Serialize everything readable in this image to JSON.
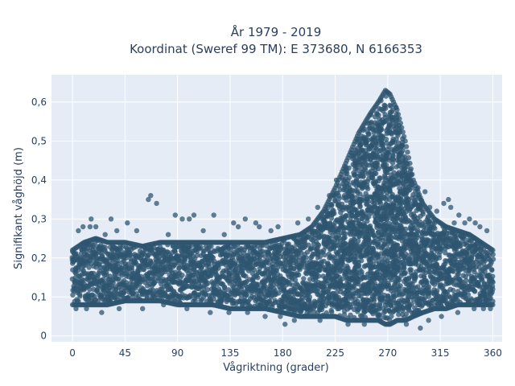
{
  "chart_data": {
    "type": "scatter",
    "title_lines": [
      "År 1979 - 2019",
      "Koordinat (Sweref 99 TM): E 373680, N 6166353"
    ],
    "xlabel": "Vågriktning (grader)",
    "ylabel": "Signifikant våghöjd (m)",
    "xlim": [
      -18,
      368
    ],
    "ylim": [
      -0.015,
      0.67
    ],
    "xticks": [
      0,
      45,
      90,
      135,
      180,
      225,
      270,
      315,
      360
    ],
    "yticks": [
      0,
      0.1,
      0.2,
      0.3,
      0.4,
      0.5,
      0.6
    ],
    "ytick_labels": [
      "0",
      "0,1",
      "0,2",
      "0,3",
      "0,4",
      "0,5",
      "0,6"
    ],
    "grid": true,
    "legend": "none",
    "colors": {
      "plot_background": "#e5ecf6",
      "grid": "#ffffff",
      "marker": "#2f5670"
    },
    "marker_opacity": 0.75,
    "envelope": {
      "direction_deg": [
        0,
        10,
        20,
        30,
        45,
        60,
        75,
        90,
        105,
        120,
        135,
        150,
        165,
        180,
        195,
        205,
        215,
        225,
        235,
        245,
        255,
        262,
        268,
        272,
        278,
        285,
        292,
        300,
        310,
        320,
        330,
        340,
        350,
        360
      ],
      "lower_m": [
        0.08,
        0.08,
        0.08,
        0.08,
        0.09,
        0.09,
        0.09,
        0.08,
        0.08,
        0.08,
        0.07,
        0.07,
        0.07,
        0.06,
        0.05,
        0.05,
        0.05,
        0.05,
        0.04,
        0.04,
        0.04,
        0.04,
        0.03,
        0.03,
        0.04,
        0.04,
        0.05,
        0.06,
        0.07,
        0.07,
        0.08,
        0.08,
        0.08,
        0.08
      ],
      "upper_m": [
        0.22,
        0.24,
        0.25,
        0.24,
        0.24,
        0.23,
        0.24,
        0.24,
        0.24,
        0.24,
        0.24,
        0.24,
        0.24,
        0.25,
        0.26,
        0.28,
        0.32,
        0.38,
        0.45,
        0.52,
        0.57,
        0.6,
        0.63,
        0.62,
        0.58,
        0.5,
        0.4,
        0.34,
        0.3,
        0.28,
        0.27,
        0.26,
        0.24,
        0.22
      ]
    },
    "outliers": [
      {
        "x": 5,
        "y": 0.27
      },
      {
        "x": 9,
        "y": 0.28
      },
      {
        "x": 15,
        "y": 0.28
      },
      {
        "x": 20,
        "y": 0.28
      },
      {
        "x": 16,
        "y": 0.3
      },
      {
        "x": 28,
        "y": 0.26
      },
      {
        "x": 33,
        "y": 0.3
      },
      {
        "x": 38,
        "y": 0.27
      },
      {
        "x": 47,
        "y": 0.29
      },
      {
        "x": 55,
        "y": 0.27
      },
      {
        "x": 65,
        "y": 0.35
      },
      {
        "x": 67,
        "y": 0.36
      },
      {
        "x": 72,
        "y": 0.34
      },
      {
        "x": 82,
        "y": 0.26
      },
      {
        "x": 88,
        "y": 0.31
      },
      {
        "x": 94,
        "y": 0.3
      },
      {
        "x": 100,
        "y": 0.3
      },
      {
        "x": 104,
        "y": 0.31
      },
      {
        "x": 112,
        "y": 0.27
      },
      {
        "x": 121,
        "y": 0.31
      },
      {
        "x": 130,
        "y": 0.26
      },
      {
        "x": 138,
        "y": 0.29
      },
      {
        "x": 142,
        "y": 0.28
      },
      {
        "x": 148,
        "y": 0.3
      },
      {
        "x": 157,
        "y": 0.29
      },
      {
        "x": 160,
        "y": 0.28
      },
      {
        "x": 170,
        "y": 0.27
      },
      {
        "x": 176,
        "y": 0.28
      },
      {
        "x": 193,
        "y": 0.29
      },
      {
        "x": 202,
        "y": 0.3
      },
      {
        "x": 210,
        "y": 0.33
      },
      {
        "x": 220,
        "y": 0.36
      },
      {
        "x": 226,
        "y": 0.4
      },
      {
        "x": 296,
        "y": 0.38
      },
      {
        "x": 302,
        "y": 0.37
      },
      {
        "x": 306,
        "y": 0.33
      },
      {
        "x": 312,
        "y": 0.32
      },
      {
        "x": 318,
        "y": 0.34
      },
      {
        "x": 322,
        "y": 0.35
      },
      {
        "x": 324,
        "y": 0.33
      },
      {
        "x": 327,
        "y": 0.29
      },
      {
        "x": 331,
        "y": 0.31
      },
      {
        "x": 336,
        "y": 0.29
      },
      {
        "x": 340,
        "y": 0.3
      },
      {
        "x": 345,
        "y": 0.29
      },
      {
        "x": 349,
        "y": 0.28
      },
      {
        "x": 355,
        "y": 0.27
      },
      {
        "x": 3,
        "y": 0.07
      },
      {
        "x": 12,
        "y": 0.07
      },
      {
        "x": 25,
        "y": 0.06
      },
      {
        "x": 40,
        "y": 0.07
      },
      {
        "x": 60,
        "y": 0.07
      },
      {
        "x": 78,
        "y": 0.08
      },
      {
        "x": 98,
        "y": 0.07
      },
      {
        "x": 118,
        "y": 0.06
      },
      {
        "x": 134,
        "y": 0.06
      },
      {
        "x": 150,
        "y": 0.06
      },
      {
        "x": 165,
        "y": 0.05
      },
      {
        "x": 178,
        "y": 0.05
      },
      {
        "x": 182,
        "y": 0.03
      },
      {
        "x": 190,
        "y": 0.04
      },
      {
        "x": 212,
        "y": 0.04
      },
      {
        "x": 236,
        "y": 0.03
      },
      {
        "x": 250,
        "y": 0.03
      },
      {
        "x": 286,
        "y": 0.03
      },
      {
        "x": 298,
        "y": 0.02
      },
      {
        "x": 305,
        "y": 0.04
      },
      {
        "x": 316,
        "y": 0.05
      },
      {
        "x": 330,
        "y": 0.06
      },
      {
        "x": 344,
        "y": 0.07
      },
      {
        "x": 352,
        "y": 0.07
      },
      {
        "x": 358,
        "y": 0.07
      }
    ]
  }
}
